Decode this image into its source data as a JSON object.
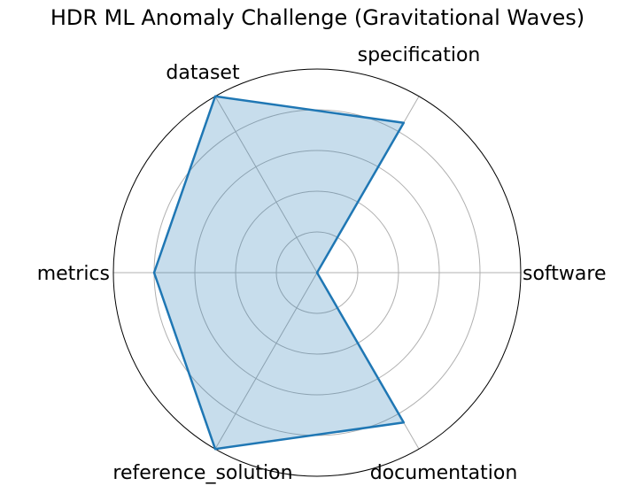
{
  "chart_data": {
    "type": "radar",
    "title": "HDR ML Anomaly Challenge (Gravitational Waves)",
    "axes": [
      "software",
      "specification",
      "dataset",
      "metrics",
      "reference_solution",
      "documentation"
    ],
    "values": [
      0,
      0.85,
      1.0,
      0.8,
      1.0,
      0.85
    ],
    "rlim": [
      0,
      1.0
    ],
    "rticks": [
      0.2,
      0.4,
      0.6,
      0.8,
      1.0
    ],
    "grid": true,
    "legend": "none",
    "colors": {
      "line": "#1f77b4",
      "fill": "#1f77b4",
      "grid": "#b0b0b0",
      "frame": "#000000"
    }
  }
}
